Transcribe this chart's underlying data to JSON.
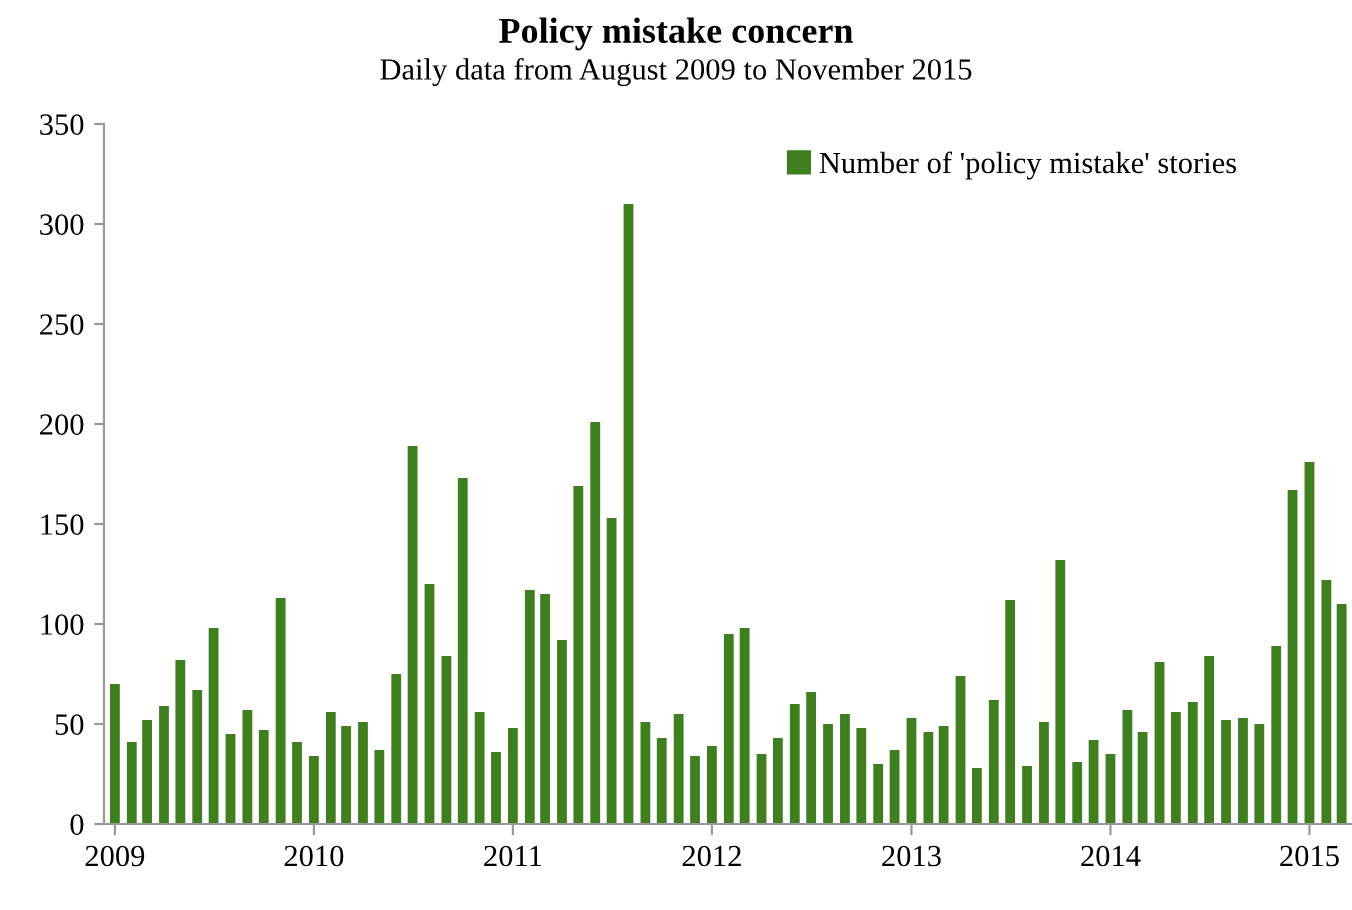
{
  "chart_data": {
    "type": "bar",
    "title": "Policy mistake concern",
    "subtitle": "Daily data from August 2009 to November 2015",
    "x": [
      "2009-01",
      "2009-02",
      "2009-03",
      "2009-04",
      "2009-05",
      "2009-06",
      "2009-07",
      "2009-08",
      "2009-09",
      "2009-10",
      "2009-11",
      "2009-12",
      "2010-01",
      "2010-02",
      "2010-03",
      "2010-04",
      "2010-05",
      "2010-06",
      "2010-07",
      "2010-08",
      "2010-09",
      "2010-10",
      "2010-11",
      "2010-12",
      "2011-01",
      "2011-02",
      "2011-03",
      "2011-04",
      "2011-05",
      "2011-06",
      "2011-07",
      "2011-08",
      "2011-09",
      "2011-10",
      "2011-11",
      "2011-12",
      "2012-01",
      "2012-02",
      "2012-03",
      "2012-04",
      "2012-05",
      "2012-06",
      "2012-07",
      "2012-08",
      "2012-09",
      "2012-10",
      "2012-11",
      "2012-12",
      "2013-01",
      "2013-02",
      "2013-03",
      "2013-04",
      "2013-05",
      "2013-06",
      "2013-07",
      "2013-08",
      "2013-09",
      "2013-10",
      "2013-11",
      "2013-12",
      "2014-01",
      "2014-02",
      "2014-03",
      "2014-04",
      "2014-05",
      "2014-06",
      "2014-07",
      "2014-08",
      "2014-09",
      "2014-10",
      "2014-11",
      "2014-12",
      "2015-01",
      "2015-02",
      "2015-03"
    ],
    "series": [
      {
        "name": "Number of 'policy mistake' stories",
        "color": "#3f7f1f",
        "values": [
          70,
          41,
          52,
          59,
          82,
          67,
          98,
          45,
          57,
          47,
          113,
          41,
          34,
          56,
          49,
          51,
          37,
          75,
          189,
          120,
          84,
          173,
          56,
          36,
          48,
          117,
          115,
          92,
          169,
          201,
          153,
          310,
          51,
          43,
          55,
          34,
          39,
          95,
          98,
          35,
          43,
          60,
          66,
          50,
          55,
          48,
          30,
          37,
          53,
          46,
          49,
          74,
          28,
          62,
          112,
          29,
          51,
          132,
          31,
          42,
          35,
          57,
          46,
          81,
          56,
          61,
          84,
          52,
          53,
          50,
          89,
          167,
          181,
          122,
          110
        ]
      }
    ],
    "xlim": [
      "2008-12-12",
      "2015-03-20"
    ],
    "xticks": [
      {
        "value": "2009-01",
        "label": "2009"
      },
      {
        "value": "2010-01",
        "label": "2010"
      },
      {
        "value": "2011-01",
        "label": "2011"
      },
      {
        "value": "2012-01",
        "label": "2012"
      },
      {
        "value": "2013-01",
        "label": "2013"
      },
      {
        "value": "2014-01",
        "label": "2014"
      },
      {
        "value": "2015-01",
        "label": "2015"
      }
    ],
    "ylim": [
      0,
      350
    ],
    "yticks": [
      0,
      50,
      100,
      150,
      200,
      250,
      300,
      350
    ],
    "grid": false,
    "legend": "top right"
  }
}
